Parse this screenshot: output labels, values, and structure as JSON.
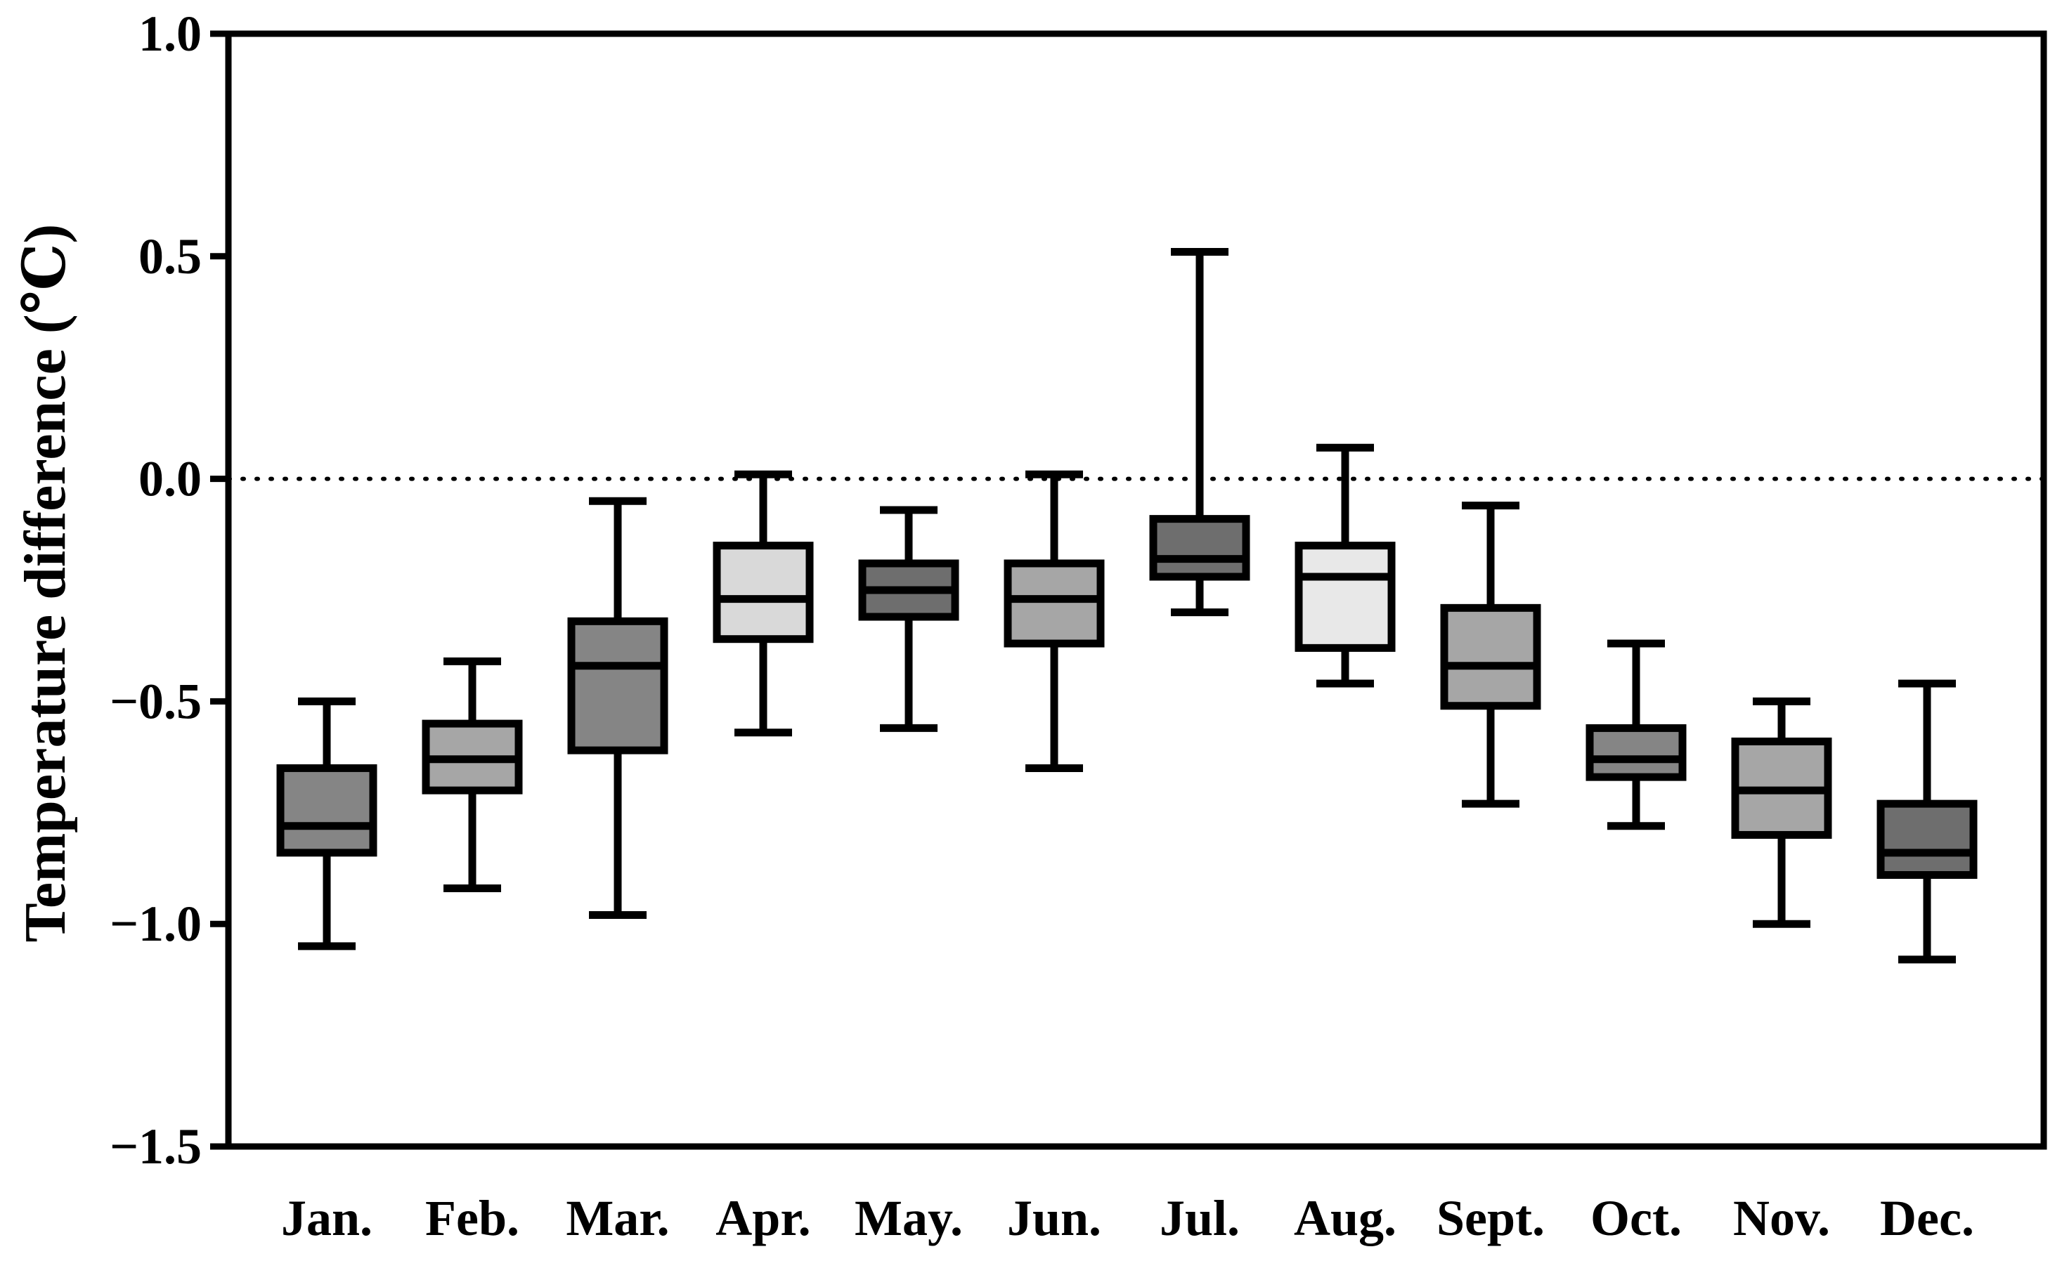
{
  "chart_data": {
    "type": "boxplot",
    "title": "",
    "xlabel": "",
    "ylabel": "Temperature difference (℃)",
    "ylim": [
      -1.5,
      1.0
    ],
    "yticks": [
      1.0,
      0.5,
      0.0,
      -0.5,
      -1.0,
      -1.5
    ],
    "ytick_labels": [
      "1.0",
      "0.5",
      "0.0",
      "−0.5",
      "−1.0",
      "−1.5"
    ],
    "reference_line": {
      "y": 0.0,
      "style": "dotted"
    },
    "grid": false,
    "legend": "none",
    "categories": [
      "Jan.",
      "Feb.",
      "Mar.",
      "Apr.",
      "May.",
      "Jun.",
      "Jul.",
      "Aug.",
      "Sept.",
      "Oct.",
      "Nov.",
      "Dec."
    ],
    "boxes": [
      {
        "min": -1.05,
        "q1": -0.84,
        "median": -0.78,
        "q3": -0.65,
        "max": -0.5,
        "fill": "#858585"
      },
      {
        "min": -0.92,
        "q1": -0.7,
        "median": -0.63,
        "q3": -0.55,
        "max": -0.41,
        "fill": "#a6a6a6"
      },
      {
        "min": -0.98,
        "q1": -0.61,
        "median": -0.42,
        "q3": -0.32,
        "max": -0.05,
        "fill": "#858585"
      },
      {
        "min": -0.57,
        "q1": -0.36,
        "median": -0.27,
        "q3": -0.15,
        "max": 0.01,
        "fill": "#d9d9d9"
      },
      {
        "min": -0.56,
        "q1": -0.31,
        "median": -0.25,
        "q3": -0.19,
        "max": -0.07,
        "fill": "#6e6e6e"
      },
      {
        "min": -0.65,
        "q1": -0.37,
        "median": -0.27,
        "q3": -0.19,
        "max": 0.01,
        "fill": "#a6a6a6"
      },
      {
        "min": -0.3,
        "q1": -0.22,
        "median": -0.18,
        "q3": -0.09,
        "max": 0.51,
        "fill": "#6e6e6e"
      },
      {
        "min": -0.46,
        "q1": -0.38,
        "median": -0.22,
        "q3": -0.15,
        "max": 0.07,
        "fill": "#e8e8e8"
      },
      {
        "min": -0.73,
        "q1": -0.51,
        "median": -0.42,
        "q3": -0.29,
        "max": -0.06,
        "fill": "#a6a6a6"
      },
      {
        "min": -0.78,
        "q1": -0.67,
        "median": -0.63,
        "q3": -0.56,
        "max": -0.37,
        "fill": "#858585"
      },
      {
        "min": -1.0,
        "q1": -0.8,
        "median": -0.7,
        "q3": -0.59,
        "max": -0.5,
        "fill": "#a6a6a6"
      },
      {
        "min": -1.08,
        "q1": -0.89,
        "median": -0.84,
        "q3": -0.73,
        "max": -0.46,
        "fill": "#6e6e6e"
      }
    ]
  }
}
